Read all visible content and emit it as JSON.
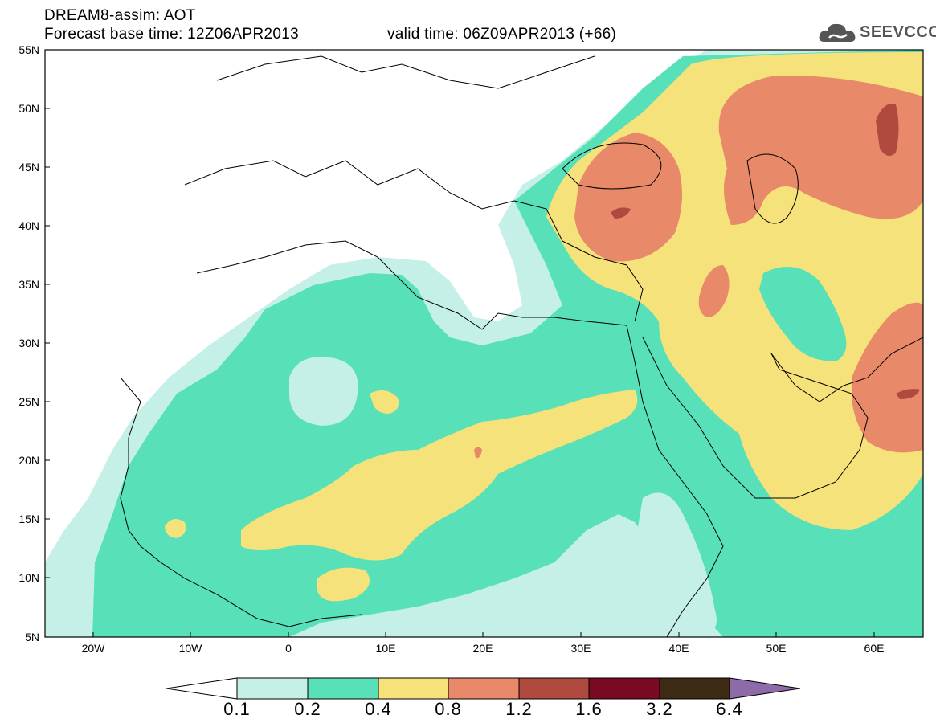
{
  "title": {
    "line1": "DREAM8-assim: AOT",
    "line2_left": "Forecast base time: 12Z06APR2013",
    "line2_right": "valid time: 06Z09APR2013 (+66)"
  },
  "logo": {
    "text": "SEEVCCC",
    "icon": "cloud-icon"
  },
  "axes": {
    "lat_labels": [
      "55N",
      "50N",
      "45N",
      "40N",
      "35N",
      "30N",
      "25N",
      "20N",
      "15N",
      "10N",
      "5N"
    ],
    "lon_labels": [
      "20W",
      "10W",
      "0",
      "10E",
      "20E",
      "30E",
      "40E",
      "50E",
      "60E"
    ]
  },
  "colorbar": {
    "labels": [
      "0.1",
      "0.2",
      "0.4",
      "0.8",
      "1.2",
      "1.6",
      "3.2",
      "6.4"
    ],
    "colors": [
      "#c4f0e8",
      "#58e0b8",
      "#f5e27a",
      "#e8896a",
      "#b04a3e",
      "#7a0a22",
      "#3d2a14",
      "#8e6aa8"
    ],
    "levels": [
      0.1,
      0.2,
      0.4,
      0.8,
      1.2,
      1.6,
      3.2,
      6.4
    ]
  }
}
